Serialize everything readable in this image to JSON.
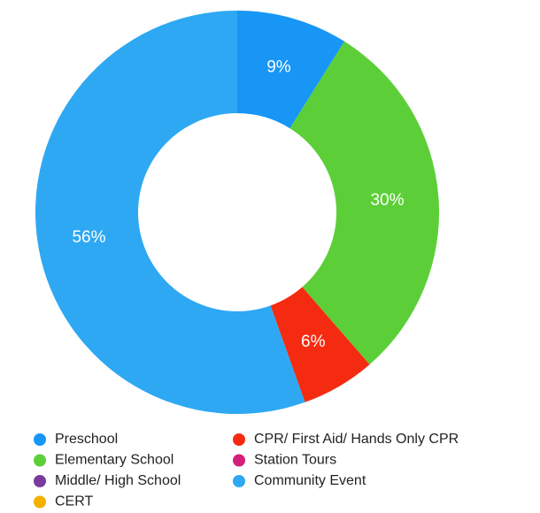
{
  "chart_data": {
    "type": "donut",
    "categories": [
      "Preschool",
      "Elementary School",
      "Middle/ High School",
      "CERT",
      "CPR/ First Aid/ Hands Only CPR",
      "Station Tours",
      "Community Event"
    ],
    "values": [
      9,
      30,
      0,
      0,
      6,
      0,
      56
    ],
    "value_labels": [
      "9%",
      "30%",
      null,
      null,
      "6%",
      null,
      "56%"
    ],
    "colors": [
      "#1796f5",
      "#5ccf38",
      "#7a3b9e",
      "#f5b000",
      "#f42b10",
      "#d4207a",
      "#2ea8f3"
    ],
    "legend": "bottom"
  }
}
